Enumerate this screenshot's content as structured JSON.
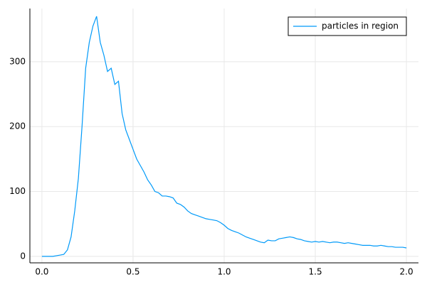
{
  "chart_data": {
    "type": "line",
    "x": [
      0,
      0.02,
      0.04,
      0.06,
      0.08,
      0.1,
      0.12,
      0.14,
      0.16,
      0.18,
      0.2,
      0.22,
      0.24,
      0.26,
      0.28,
      0.3,
      0.32,
      0.34,
      0.36,
      0.38,
      0.4,
      0.42,
      0.44,
      0.46,
      0.48,
      0.5,
      0.52,
      0.54,
      0.56,
      0.58,
      0.6,
      0.62,
      0.64,
      0.66,
      0.68,
      0.7,
      0.72,
      0.74,
      0.76,
      0.78,
      0.8,
      0.82,
      0.84,
      0.86,
      0.88,
      0.9,
      0.92,
      0.94,
      0.96,
      0.98,
      1,
      1.02,
      1.04,
      1.06,
      1.08,
      1.1,
      1.12,
      1.14,
      1.16,
      1.18,
      1.2,
      1.22,
      1.24,
      1.26,
      1.28,
      1.3,
      1.32,
      1.34,
      1.36,
      1.38,
      1.4,
      1.42,
      1.44,
      1.46,
      1.48,
      1.5,
      1.52,
      1.54,
      1.56,
      1.58,
      1.6,
      1.62,
      1.64,
      1.66,
      1.68,
      1.7,
      1.72,
      1.74,
      1.76,
      1.78,
      1.8,
      1.82,
      1.84,
      1.86,
      1.88,
      1.9,
      1.92,
      1.94,
      1.96,
      1.98,
      2
    ],
    "series": [
      {
        "name": "particles in region",
        "color": "#009af9",
        "values": [
          0,
          0,
          0,
          0,
          1,
          2,
          3,
          10,
          30,
          70,
          120,
          200,
          290,
          330,
          355,
          370,
          330,
          310,
          285,
          290,
          265,
          270,
          220,
          195,
          180,
          165,
          150,
          140,
          130,
          118,
          110,
          100,
          98,
          93,
          93,
          92,
          90,
          82,
          80,
          76,
          70,
          66,
          64,
          62,
          60,
          58,
          57,
          56,
          55,
          52,
          48,
          43,
          40,
          38,
          36,
          33,
          30,
          28,
          26,
          24,
          22,
          21,
          25,
          24,
          24,
          27,
          28,
          29,
          30,
          29,
          27,
          26,
          24,
          23,
          22,
          23,
          22,
          23,
          22,
          21,
          22,
          22,
          21,
          20,
          21,
          20,
          19,
          18,
          17,
          17,
          17,
          16,
          16,
          17,
          16,
          15,
          15,
          14,
          14,
          14,
          13
        ]
      }
    ],
    "xlim": [
      -0.066,
      2.066
    ],
    "ylim": [
      -10,
      382
    ],
    "xticks": [
      {
        "value": 0,
        "label": "0.0"
      },
      0.5,
      {
        "value": 1,
        "label": "1.0"
      },
      1.5,
      {
        "value": 2,
        "label": "2.0"
      }
    ],
    "yticks": [
      0,
      100,
      200,
      300
    ],
    "grid": true,
    "legend": "top-right"
  }
}
